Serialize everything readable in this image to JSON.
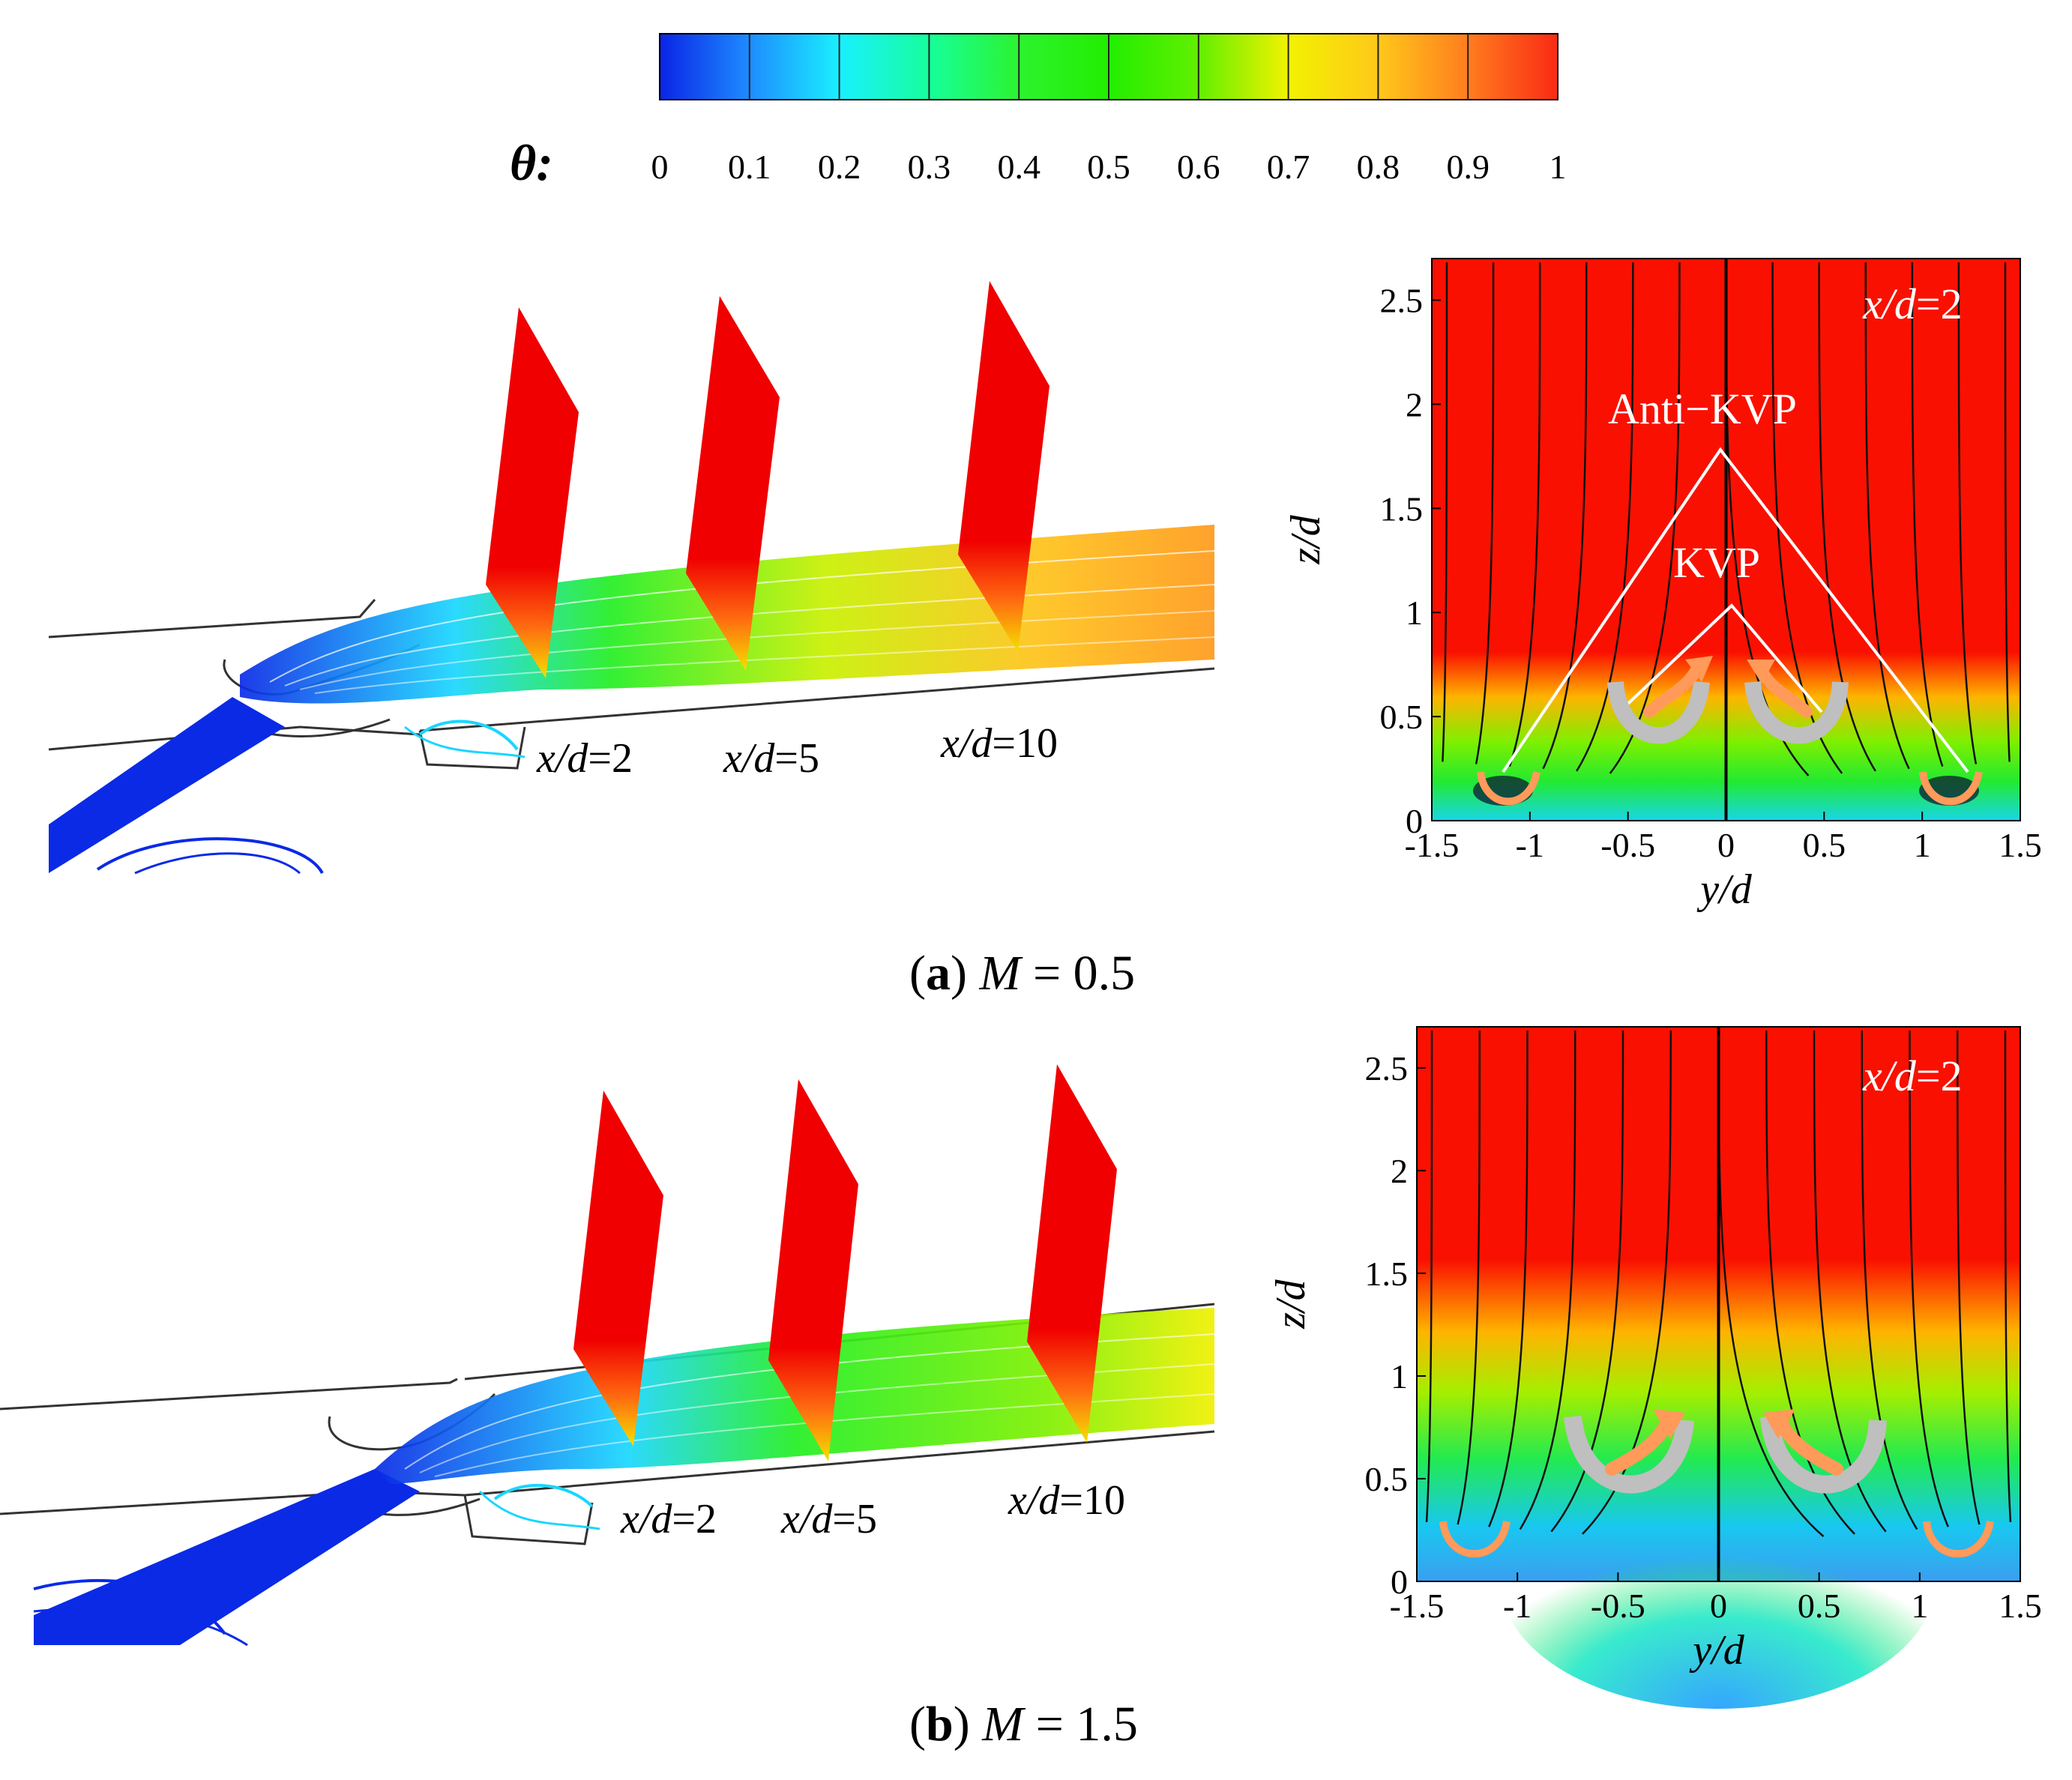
{
  "colorbar": {
    "symbol": "θ:",
    "ticks": [
      "0",
      "0.1",
      "0.2",
      "0.3",
      "0.4",
      "0.5",
      "0.6",
      "0.7",
      "0.8",
      "0.9",
      "1"
    ],
    "colors": [
      "#0a24e6",
      "#1e8cff",
      "#19f0ff",
      "#16ff9b",
      "#2cf32f",
      "#22ee00",
      "#62ef00",
      "#f2f200",
      "#ffc81a",
      "#ff7d1e",
      "#fa2a14"
    ]
  },
  "panels": [
    {
      "id": "a",
      "caption_letter": "a",
      "caption_var": "M",
      "caption_rest": " = 0.5",
      "plane_label_var": "x/d",
      "plane_labels": [
        "=2",
        "=5",
        "=10"
      ],
      "contour": {
        "slice_var": "x/d",
        "slice_value": "=2",
        "xlabel": "y/d",
        "ylabel": "z/d",
        "xticks": [
          "-1.5",
          "-1",
          "-0.5",
          "0",
          "0.5",
          "1",
          "1.5"
        ],
        "yticks": [
          "0",
          "0.5",
          "1",
          "1.5",
          "2",
          "2.5"
        ],
        "xlim": [
          -1.5,
          1.5
        ],
        "ylim": [
          0,
          2.7
        ],
        "annotations": [
          "Anti−KVP",
          "KVP"
        ]
      }
    },
    {
      "id": "b",
      "caption_letter": "b",
      "caption_var": "M",
      "caption_rest": " = 1.5",
      "plane_label_var": "x/d",
      "plane_labels": [
        "=2",
        "=5",
        "=10"
      ],
      "contour": {
        "slice_var": "x/d",
        "slice_value": "=2",
        "xlabel": "y/d",
        "ylabel": "z/d",
        "xticks": [
          "-1.5",
          "-1",
          "-0.5",
          "0",
          "0.5",
          "1",
          "1.5"
        ],
        "yticks": [
          "0",
          "0.5",
          "1",
          "1.5",
          "2",
          "2.5"
        ],
        "xlim": [
          -1.5,
          1.5
        ],
        "ylim": [
          0,
          2.7
        ],
        "annotations": []
      }
    }
  ]
}
